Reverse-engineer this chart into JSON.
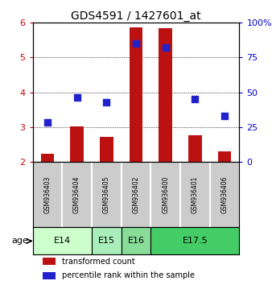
{
  "title": "GDS4591 / 1427601_at",
  "samples": [
    "GSM936403",
    "GSM936404",
    "GSM936405",
    "GSM936402",
    "GSM936400",
    "GSM936401",
    "GSM936406"
  ],
  "transformed_counts": [
    2.22,
    3.01,
    2.71,
    5.87,
    5.84,
    2.76,
    2.3
  ],
  "percentile_ranks_pct": [
    28,
    46,
    43,
    85,
    82,
    45,
    33
  ],
  "ylim": [
    2.0,
    6.0
  ],
  "yticks_left": [
    2,
    3,
    4,
    5,
    6
  ],
  "yticks_right_vals": [
    0,
    25,
    50,
    75,
    100
  ],
  "yticks_right_labels": [
    "0",
    "25",
    "50",
    "75",
    "100%"
  ],
  "bar_color": "#bb1111",
  "dot_color": "#2222cc",
  "bar_width": 0.45,
  "dot_size": 40,
  "age_groups": [
    {
      "label": "E14",
      "spans": [
        0,
        1
      ],
      "color": "#ccffcc"
    },
    {
      "label": "E15",
      "spans": [
        2
      ],
      "color": "#aaeebb"
    },
    {
      "label": "E16",
      "spans": [
        3
      ],
      "color": "#88dd99"
    },
    {
      "label": "E17.5",
      "spans": [
        4,
        5,
        6
      ],
      "color": "#44cc66"
    }
  ],
  "sample_bg_color": "#cccccc",
  "legend_bar_label": "transformed count",
  "legend_dot_label": "percentile rank within the sample",
  "ylabel_left_color": "#cc0000",
  "ylabel_right_color": "#0000cc",
  "title_fontsize": 10,
  "tick_fontsize": 8,
  "age_label": "age"
}
